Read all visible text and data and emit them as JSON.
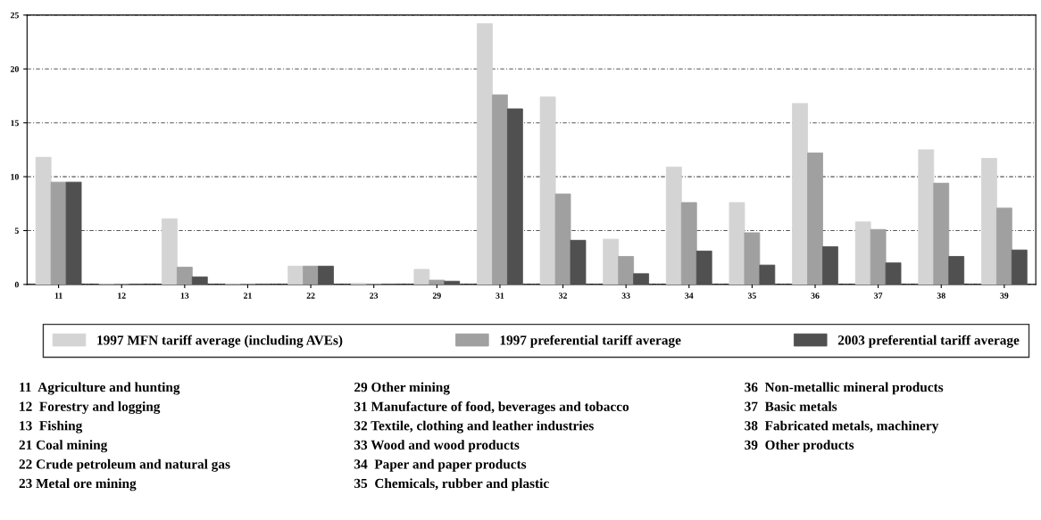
{
  "chart_data": {
    "type": "bar",
    "categories": [
      "11",
      "12",
      "13",
      "21",
      "22",
      "23",
      "29",
      "31",
      "32",
      "33",
      "34",
      "35",
      "36",
      "37",
      "38",
      "39"
    ],
    "series": [
      {
        "name": "1997 MFN tariff average (including AVEs)",
        "color": "#d4d4d4",
        "values": [
          11.8,
          0,
          6.1,
          0,
          1.7,
          0.1,
          1.4,
          24.2,
          17.4,
          4.2,
          10.9,
          7.6,
          16.8,
          5.8,
          12.5,
          11.7
        ]
      },
      {
        "name": "1997 preferential tariff average",
        "color": "#a0a0a0",
        "values": [
          9.5,
          0,
          1.6,
          0,
          1.7,
          0,
          0.4,
          17.6,
          8.4,
          2.6,
          7.6,
          4.8,
          12.2,
          5.1,
          9.4,
          7.1
        ]
      },
      {
        "name": "2003 preferential tariff average",
        "color": "#505050",
        "values": [
          9.5,
          0,
          0.7,
          0,
          1.7,
          0,
          0.3,
          16.3,
          4.1,
          1.0,
          3.1,
          1.8,
          3.5,
          2.0,
          2.6,
          3.2
        ]
      }
    ],
    "ylim": [
      0,
      25
    ],
    "yticks": [
      0,
      5,
      10,
      15,
      20,
      25
    ],
    "grid": "y",
    "legend": "bottom",
    "annotations": [
      "11  Agriculture and hunting",
      "12  Forestry and logging",
      "13  Fishing",
      "21 Coal mining",
      "22 Crude petroleum and natural gas",
      "23 Metal ore mining",
      "29 Other mining",
      "31 Manufacture of food, beverages and tobacco",
      "32 Textile, clothing and leather industries",
      "33 Wood and wood products",
      "34  Paper and paper products",
      "35  Chemicals, rubber and plastic",
      "36  Non-metallic mineral products",
      "37  Basic metals",
      "38  Fabricated metals, machinery",
      "39  Other products"
    ]
  }
}
